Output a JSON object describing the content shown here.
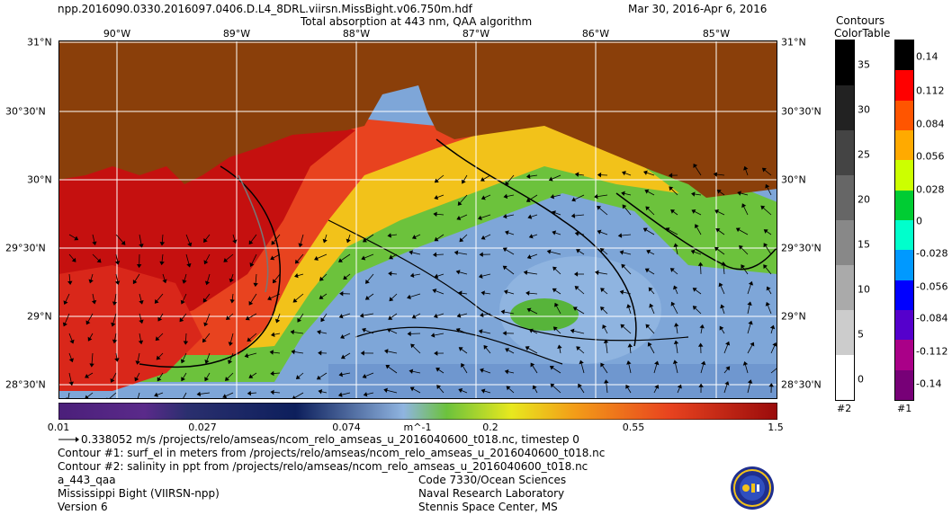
{
  "header": {
    "filename": "npp.2016090.0330.2016097.0406.D.L4_8DRL.viirsn.MissBight.v06.750m.hdf",
    "subtitle": "Total absorption at 443 nm, QAA algorithm",
    "date_range": "Mar 30, 2016-Apr  6, 2016"
  },
  "map": {
    "lon_labels": [
      "90°W",
      "89°W",
      "88°W",
      "87°W",
      "86°W",
      "85°W"
    ],
    "lat_labels": [
      "31°N",
      "30°30'N",
      "30°N",
      "29°30'N",
      "29°N",
      "28°30'N"
    ],
    "colors": {
      "land": "#8a3f0a",
      "grid": "#ffffff"
    }
  },
  "colorbar": {
    "ticks": [
      "0.01",
      "0.027",
      "0.074",
      "0.2",
      "0.55",
      "1.5"
    ],
    "unit": "m^-1",
    "colors": [
      "#4b1f7a",
      "#2a2f6e",
      "#0d1f5c",
      "#8fb4e0",
      "#6cc23c",
      "#e8e81e",
      "#f39b18",
      "#e8431f",
      "#9a0b0b"
    ]
  },
  "contours_legend": {
    "title_line1": "Contours",
    "title_line2": "ColorTable",
    "labels": [
      "35",
      "30",
      "25",
      "20",
      "15",
      "10",
      "5",
      "0"
    ],
    "grays": [
      "#000000",
      "#222222",
      "#444444",
      "#666666",
      "#888888",
      "#aaaaaa",
      "#cccccc",
      "#eeeeee",
      "#ffffff"
    ],
    "tag": "#2"
  },
  "ct_legend": {
    "labels": [
      "0.14",
      "0.112",
      "0.084",
      "0.056",
      "0.028",
      "0",
      "-0.028",
      "-0.056",
      "-0.084",
      "-0.112",
      "-0.14"
    ],
    "colors": [
      "#000000",
      "#ff0000",
      "#ff5500",
      "#ffaa00",
      "#ccff00",
      "#00cc33",
      "#00ffcc",
      "#0099ff",
      "#0000ff",
      "#5500cc",
      "#aa0088",
      "#770077"
    ],
    "tag": "#1"
  },
  "footer": {
    "arrow_note": "0.338052 m/s /projects/relo/amseas/ncom_relo_amseas_u_2016040600_t018.nc, timestep 0",
    "contour1": "Contour #1: surf_el in meters from /projects/relo/amseas/ncom_relo_amseas_u_2016040600_t018.nc",
    "contour2": "Contour #2: salinity in ppt from /projects/relo/amseas/ncom_relo_amseas_u_2016040600_t018.nc",
    "product": "a_443_qaa",
    "region": "Mississippi Bight (VIIRSN-npp)",
    "version": "Version 6",
    "org1": "Code 7330/Ocean Sciences",
    "org2": "Naval Research Laboratory",
    "org3": "Stennis Space Center, MS"
  }
}
